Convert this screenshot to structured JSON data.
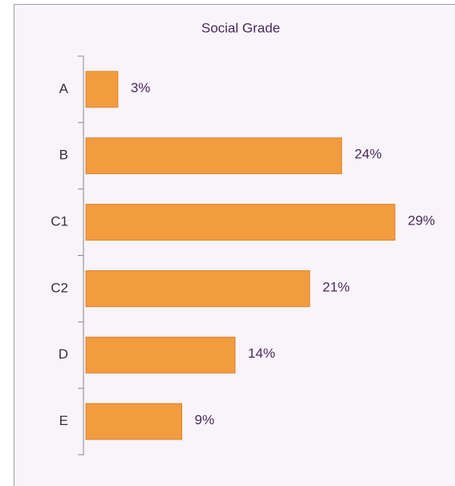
{
  "chart_data": {
    "type": "bar",
    "orientation": "horizontal",
    "title": "Social Grade",
    "categories": [
      "A",
      "B",
      "C1",
      "C2",
      "D",
      "E"
    ],
    "values": [
      3,
      24,
      29,
      21,
      14,
      9
    ],
    "value_labels": [
      "3%",
      "24%",
      "29%",
      "21%",
      "14%",
      "9%"
    ],
    "color": "#f39c3f"
  }
}
